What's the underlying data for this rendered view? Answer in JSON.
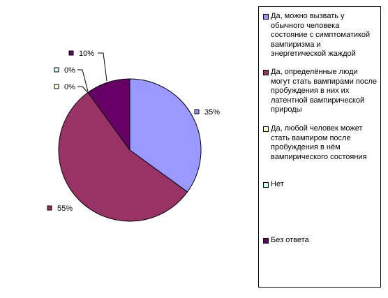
{
  "chart_data": {
    "type": "pie",
    "series": [
      {
        "name": "Да, можно вызвать у обычного человека состояние с симптоматикой вампиризма и энергетической жаждой",
        "value": 35,
        "label": "35%",
        "color": "#9999ff"
      },
      {
        "name": "Да, определённые люди могут стать вампирами после пробуждения в них их латентной вампирической природы",
        "value": 55,
        "label": "55%",
        "color": "#993366"
      },
      {
        "name": "Да, любой человек может стать вампиром после пробуждения в нём вампирического состояния",
        "value": 0,
        "label": "0%",
        "color": "#ffffcc"
      },
      {
        "name": "Нет",
        "value": 0,
        "label": "0%",
        "color": "#ccffff"
      },
      {
        "name": "Без ответа",
        "value": 10,
        "label": "10%",
        "color": "#660066"
      }
    ],
    "legend_position": "right"
  }
}
